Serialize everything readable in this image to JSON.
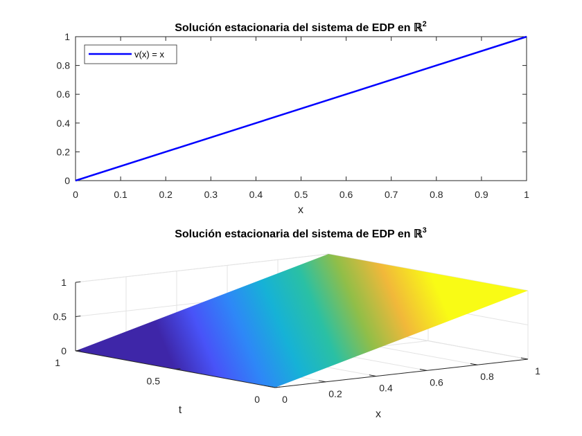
{
  "chart_data": [
    {
      "type": "line",
      "title": "Solución estacionaria del sistema de EDP en ℝ",
      "title_superscript": "2",
      "xlabel": "x",
      "ylabel": "",
      "xlim": [
        0,
        1
      ],
      "ylim": [
        0,
        1
      ],
      "x_ticks": [
        "0",
        "0.1",
        "0.2",
        "0.3",
        "0.4",
        "0.5",
        "0.6",
        "0.7",
        "0.8",
        "0.9",
        "1"
      ],
      "y_ticks": [
        "0",
        "0.2",
        "0.4",
        "0.6",
        "0.8",
        "1"
      ],
      "grid": false,
      "legend_position": "top-left",
      "series": [
        {
          "name": "v(x) = x",
          "color": "#0000ff",
          "x": [
            0,
            1
          ],
          "y": [
            0,
            1
          ]
        }
      ]
    },
    {
      "type": "surface",
      "title": "Solución estacionaria del sistema de EDP en ℝ",
      "title_superscript": "3",
      "xlabel": "x",
      "ylabel": "t",
      "zlabel": "",
      "xlim": [
        0,
        1
      ],
      "ylim": [
        0,
        1
      ],
      "zlim": [
        0,
        1
      ],
      "x_ticks": [
        "0",
        "0.2",
        "0.4",
        "0.6",
        "0.8",
        "1"
      ],
      "y_ticks": [
        "0",
        "0.5",
        "1"
      ],
      "z_ticks": [
        "0",
        "0.5",
        "1"
      ],
      "grid": true,
      "colormap": "parula",
      "surface": "z = x",
      "corners": [
        {
          "x": 0,
          "t": 0,
          "z": 0
        },
        {
          "x": 1,
          "t": 0,
          "z": 1
        },
        {
          "x": 1,
          "t": 1,
          "z": 1
        },
        {
          "x": 0,
          "t": 1,
          "z": 0
        }
      ]
    }
  ]
}
